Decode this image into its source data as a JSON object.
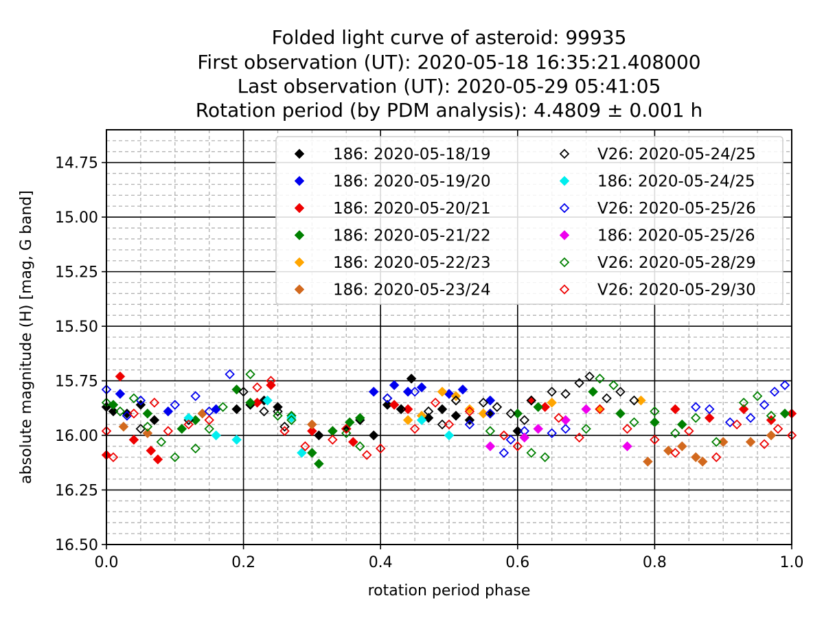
{
  "chart_data": {
    "type": "scatter",
    "title": [
      "Folded light curve of asteroid: 99935",
      "First observation (UT): 2020-05-18 16:35:21.408000",
      "Last observation (UT): 2020-05-29 05:41:05",
      "Rotation period (by PDM analysis): 4.4809 ± 0.001 h"
    ],
    "xlabel": "rotation period phase",
    "ylabel": "absolute magnitude (H) [mag, G band]",
    "xlim": [
      0.0,
      1.0
    ],
    "ylim": [
      16.5,
      14.6
    ],
    "y_inverted": true,
    "grid": true,
    "x_ticks": [
      0.0,
      0.2,
      0.4,
      0.6,
      0.8,
      1.0
    ],
    "x_tick_labels": [
      "0.0",
      "0.2",
      "0.4",
      "0.6",
      "0.8",
      "1.0"
    ],
    "y_ticks": [
      14.75,
      15.0,
      15.25,
      15.5,
      15.75,
      16.0,
      16.25,
      16.5
    ],
    "y_tick_labels": [
      "14.75",
      "15.00",
      "15.25",
      "15.50",
      "15.75",
      "16.00",
      "16.25",
      "16.50"
    ],
    "legend_position": "top-right",
    "series": [
      {
        "name": "186: 2020-05-18/19",
        "color": "#000000",
        "marker": "filled-diamond",
        "x": [
          0.0,
          0.01,
          0.03,
          0.05,
          0.07,
          0.19,
          0.21,
          0.23,
          0.25,
          0.31,
          0.33,
          0.35,
          0.37,
          0.39,
          0.41,
          0.43,
          0.445,
          0.47,
          0.49,
          0.51,
          0.53,
          0.56,
          0.6
        ],
        "y": [
          15.87,
          15.89,
          15.9,
          15.86,
          15.93,
          15.88,
          15.86,
          15.84,
          15.87,
          16.0,
          15.98,
          15.97,
          15.93,
          16.0,
          15.86,
          15.88,
          15.74,
          15.92,
          15.88,
          15.91,
          15.93,
          15.9,
          15.98
        ]
      },
      {
        "name": "186: 2020-05-19/20",
        "color": "#0000ee",
        "marker": "filled-diamond",
        "x": [
          0.02,
          0.09,
          0.16,
          0.39,
          0.42,
          0.44,
          0.46,
          0.5,
          0.52,
          0.56
        ],
        "y": [
          15.81,
          15.89,
          15.88,
          15.8,
          15.77,
          15.8,
          15.78,
          15.81,
          15.79,
          15.84
        ]
      },
      {
        "name": "186: 2020-05-20/21",
        "color": "#ee0000",
        "marker": "filled-diamond",
        "x": [
          0.0,
          0.02,
          0.04,
          0.065,
          0.075,
          0.22,
          0.24,
          0.3,
          0.36,
          0.42,
          0.44,
          0.62,
          0.64,
          0.83,
          0.88,
          0.93,
          0.97,
          1.0
        ],
        "y": [
          16.09,
          15.73,
          16.02,
          16.07,
          16.11,
          15.85,
          15.77,
          15.98,
          16.03,
          15.86,
          15.88,
          15.84,
          15.87,
          15.88,
          15.92,
          15.88,
          15.93,
          15.9
        ]
      },
      {
        "name": "186: 2020-05-21/22",
        "color": "#008000",
        "marker": "filled-diamond",
        "x": [
          0.01,
          0.06,
          0.11,
          0.13,
          0.19,
          0.21,
          0.27,
          0.3,
          0.31,
          0.33,
          0.355,
          0.37,
          0.6,
          0.63,
          0.71,
          0.75,
          0.8,
          0.84,
          0.99
        ],
        "y": [
          15.86,
          15.9,
          15.97,
          15.93,
          15.79,
          15.85,
          15.91,
          16.08,
          16.13,
          15.98,
          15.94,
          15.92,
          15.9,
          15.87,
          15.8,
          15.9,
          15.94,
          15.95,
          15.9
        ]
      },
      {
        "name": "186: 2020-05-22/23",
        "color": "#ffa500",
        "marker": "filled-diamond",
        "x": [
          0.44,
          0.46,
          0.49,
          0.51,
          0.53,
          0.55,
          0.65,
          0.72,
          0.78
        ],
        "y": [
          15.93,
          15.91,
          15.8,
          15.82,
          15.88,
          15.9,
          15.85,
          15.88,
          15.84
        ]
      },
      {
        "name": "186: 2020-05-23/24",
        "color": "#d2691e",
        "marker": "filled-diamond",
        "x": [
          0.025,
          0.06,
          0.14,
          0.3,
          0.79,
          0.82,
          0.84,
          0.86,
          0.87,
          0.9,
          0.94,
          0.97
        ],
        "y": [
          15.96,
          15.99,
          15.9,
          15.95,
          16.12,
          16.07,
          16.05,
          16.1,
          16.12,
          16.03,
          16.03,
          16.0
        ]
      },
      {
        "name": "V26: 2020-05-24/25",
        "color": "#000000",
        "marker": "open-diamond",
        "x": [
          0.05,
          0.12,
          0.2,
          0.23,
          0.25,
          0.26,
          0.41,
          0.43,
          0.47,
          0.49,
          0.51,
          0.55,
          0.57,
          0.59,
          0.61,
          0.62,
          0.65,
          0.67,
          0.69,
          0.705,
          0.73,
          0.75,
          0.77
        ],
        "y": [
          15.97,
          15.93,
          15.8,
          15.89,
          15.89,
          15.96,
          15.83,
          15.88,
          15.89,
          15.95,
          15.84,
          15.85,
          15.87,
          15.9,
          15.93,
          15.84,
          15.8,
          15.81,
          15.76,
          15.73,
          15.83,
          15.8,
          15.84
        ]
      },
      {
        "name": "186: 2020-05-24/25",
        "color": "#00eeee",
        "marker": "filled-diamond",
        "x": [
          0.12,
          0.16,
          0.19,
          0.235,
          0.27,
          0.285,
          0.46,
          0.5
        ],
        "y": [
          15.92,
          16.0,
          16.02,
          15.84,
          15.92,
          16.08,
          15.93,
          16.0
        ]
      },
      {
        "name": "V26: 2020-05-25/26",
        "color": "#0000ee",
        "marker": "open-diamond",
        "x": [
          0.0,
          0.03,
          0.05,
          0.1,
          0.13,
          0.15,
          0.18,
          0.41,
          0.45,
          0.53,
          0.56,
          0.58,
          0.59,
          0.61,
          0.65,
          0.67,
          0.86,
          0.88,
          0.91,
          0.94,
          0.96,
          0.975,
          0.99
        ],
        "y": [
          15.79,
          15.91,
          15.84,
          15.86,
          15.82,
          15.89,
          15.72,
          15.83,
          15.8,
          15.95,
          15.9,
          16.08,
          16.02,
          15.98,
          15.99,
          15.97,
          15.87,
          15.88,
          15.94,
          15.92,
          15.86,
          15.8,
          15.77
        ]
      },
      {
        "name": "186: 2020-05-25/26",
        "color": "#ee00ee",
        "marker": "filled-diamond",
        "x": [
          0.56,
          0.61,
          0.63,
          0.67,
          0.7,
          0.76
        ],
        "y": [
          16.05,
          16.01,
          15.97,
          15.93,
          15.88,
          16.05
        ]
      },
      {
        "name": "V26: 2020-05-28/29",
        "color": "#008000",
        "marker": "open-diamond",
        "x": [
          0.0,
          0.02,
          0.04,
          0.06,
          0.08,
          0.1,
          0.13,
          0.15,
          0.17,
          0.21,
          0.25,
          0.27,
          0.35,
          0.37,
          0.56,
          0.62,
          0.64,
          0.7,
          0.72,
          0.74,
          0.77,
          0.8,
          0.83,
          0.86,
          0.89,
          0.93,
          0.95,
          0.97
        ],
        "y": [
          15.85,
          15.89,
          15.83,
          15.96,
          16.03,
          16.1,
          16.06,
          15.97,
          15.87,
          15.72,
          15.91,
          15.93,
          15.99,
          16.05,
          15.98,
          16.08,
          16.1,
          15.97,
          15.74,
          15.77,
          15.94,
          15.89,
          15.99,
          15.92,
          16.03,
          15.85,
          15.82,
          15.91
        ]
      },
      {
        "name": "V26: 2020-05-29/30",
        "color": "#ee0000",
        "marker": "open-diamond",
        "x": [
          0.0,
          0.01,
          0.04,
          0.07,
          0.09,
          0.12,
          0.15,
          0.22,
          0.24,
          0.26,
          0.29,
          0.33,
          0.35,
          0.38,
          0.4,
          0.45,
          0.48,
          0.5,
          0.53,
          0.58,
          0.6,
          0.66,
          0.69,
          0.72,
          0.76,
          0.8,
          0.83,
          0.85,
          0.89,
          0.92,
          0.96,
          0.98,
          1.0
        ],
        "y": [
          15.98,
          16.1,
          15.9,
          15.85,
          15.98,
          15.95,
          15.93,
          15.78,
          15.75,
          15.98,
          16.05,
          16.02,
          15.97,
          16.09,
          16.06,
          15.97,
          15.85,
          15.95,
          15.89,
          16.0,
          16.05,
          15.92,
          16.01,
          15.88,
          15.97,
          16.02,
          16.08,
          15.98,
          16.1,
          15.95,
          16.04,
          15.97,
          16.0
        ]
      }
    ]
  }
}
